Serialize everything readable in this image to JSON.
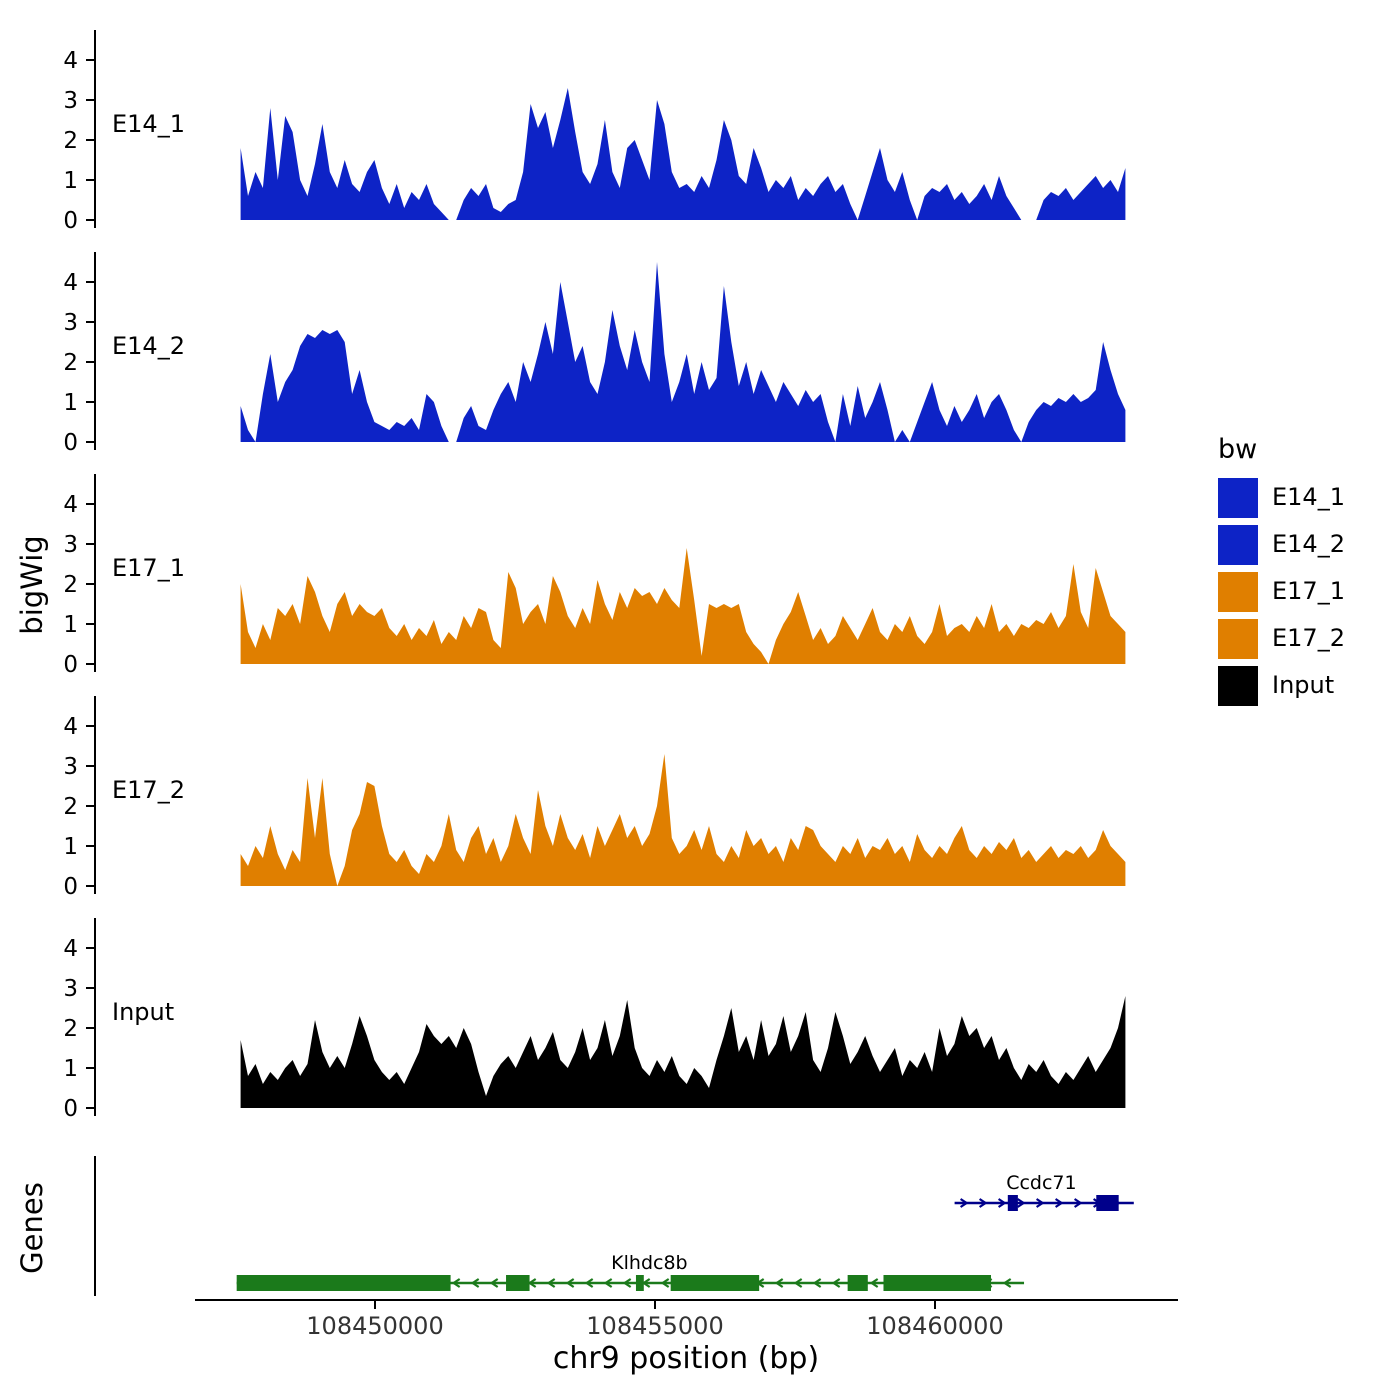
{
  "y_axis_title": "bigWig",
  "genes_panel_title": "Genes",
  "x_axis": {
    "title": "chr9 position (bp)",
    "tick_labels": [
      "108450000",
      "108455000",
      "108460000"
    ],
    "tick_values": [
      108450000,
      108455000,
      108460000
    ]
  },
  "legend": {
    "title": "bw",
    "items": [
      {
        "label": "E14_1",
        "color": "#0d23c6"
      },
      {
        "label": "E14_2",
        "color": "#0d23c6"
      },
      {
        "label": "E17_1",
        "color": "#e07f00"
      },
      {
        "label": "E17_2",
        "color": "#e07f00"
      },
      {
        "label": "Input",
        "color": "#000000"
      }
    ]
  },
  "chart_data": {
    "type": "area",
    "title": "",
    "xlabel": "chr9 position (bp)",
    "ylabel": "bigWig",
    "x_start": 108447600,
    "x_end": 108463400,
    "y_ticks": [
      0,
      1,
      2,
      3,
      4
    ],
    "ylim": [
      0,
      4.6
    ],
    "x_tick_values": [
      108450000,
      108455000,
      108460000
    ],
    "tracks": [
      {
        "name": "E14_1",
        "color": "#0d23c6",
        "values": [
          1.8,
          0.6,
          1.2,
          0.8,
          2.8,
          1.0,
          2.6,
          2.2,
          1.0,
          0.6,
          1.4,
          2.4,
          1.2,
          0.8,
          1.5,
          0.9,
          0.7,
          1.2,
          1.5,
          0.8,
          0.4,
          0.9,
          0.3,
          0.7,
          0.5,
          0.9,
          0.4,
          0.2,
          0,
          0,
          0.5,
          0.8,
          0.6,
          0.9,
          0.3,
          0.2,
          0.4,
          0.5,
          1.2,
          2.9,
          2.3,
          2.7,
          1.8,
          2.5,
          3.3,
          2.2,
          1.2,
          0.9,
          1.4,
          2.5,
          1.2,
          0.8,
          1.8,
          2.0,
          1.5,
          1.0,
          3.0,
          2.4,
          1.2,
          0.8,
          0.9,
          0.7,
          1.1,
          0.8,
          1.5,
          2.5,
          2.0,
          1.1,
          0.9,
          1.8,
          1.3,
          0.7,
          1.0,
          0.8,
          1.1,
          0.5,
          0.8,
          0.6,
          0.9,
          1.1,
          0.7,
          0.9,
          0.4,
          0,
          0.6,
          1.2,
          1.8,
          1.0,
          0.7,
          1.2,
          0.5,
          0,
          0.6,
          0.8,
          0.7,
          0.9,
          0.5,
          0.7,
          0.4,
          0.6,
          0.9,
          0.5,
          1.1,
          0.6,
          0.3,
          0,
          0,
          0,
          0.5,
          0.7,
          0.6,
          0.8,
          0.5,
          0.7,
          0.9,
          1.1,
          0.8,
          1.0,
          0.7,
          1.3
        ]
      },
      {
        "name": "E14_2",
        "color": "#0d23c6",
        "values": [
          0.9,
          0.3,
          0,
          1.2,
          2.2,
          1.0,
          1.5,
          1.8,
          2.4,
          2.7,
          2.6,
          2.8,
          2.7,
          2.8,
          2.5,
          1.2,
          1.8,
          1.0,
          0.5,
          0.4,
          0.3,
          0.5,
          0.4,
          0.6,
          0.3,
          1.2,
          1.0,
          0.4,
          0,
          0,
          0.6,
          0.9,
          0.4,
          0.3,
          0.8,
          1.2,
          1.5,
          1.0,
          2.0,
          1.5,
          2.2,
          3.0,
          2.2,
          4.0,
          3.0,
          2.0,
          2.4,
          1.5,
          1.2,
          2.0,
          3.3,
          2.4,
          1.8,
          2.8,
          2.0,
          1.5,
          4.5,
          2.2,
          1.0,
          1.5,
          2.2,
          1.2,
          2.0,
          1.3,
          1.6,
          3.9,
          2.5,
          1.4,
          2.0,
          1.2,
          1.8,
          1.4,
          1.0,
          1.5,
          1.2,
          0.9,
          1.3,
          1.0,
          1.2,
          0.5,
          0,
          1.2,
          0.4,
          1.4,
          0.6,
          1.0,
          1.5,
          0.8,
          0,
          0.3,
          0,
          0.5,
          1.0,
          1.5,
          0.8,
          0.4,
          0.9,
          0.5,
          0.8,
          1.2,
          0.6,
          1.0,
          1.2,
          0.8,
          0.3,
          0,
          0.5,
          0.8,
          1.0,
          0.9,
          1.1,
          1.0,
          1.2,
          1.0,
          1.1,
          1.3,
          2.5,
          1.8,
          1.2,
          0.8
        ]
      },
      {
        "name": "E17_1",
        "color": "#e07f00",
        "values": [
          2.0,
          0.8,
          0.4,
          1.0,
          0.6,
          1.4,
          1.2,
          1.5,
          1.0,
          2.2,
          1.8,
          1.2,
          0.8,
          1.5,
          1.8,
          1.2,
          1.5,
          1.3,
          1.2,
          1.4,
          0.9,
          0.7,
          1.0,
          0.6,
          0.9,
          0.7,
          1.1,
          0.5,
          0.8,
          0.6,
          1.2,
          0.9,
          1.4,
          1.3,
          0.6,
          0.4,
          2.3,
          1.9,
          1.0,
          1.3,
          1.5,
          1.0,
          2.2,
          1.8,
          1.2,
          0.9,
          1.4,
          1.0,
          2.1,
          1.5,
          1.1,
          1.8,
          1.4,
          1.9,
          1.7,
          1.8,
          1.5,
          1.9,
          1.6,
          1.4,
          2.9,
          1.6,
          0.2,
          1.5,
          1.4,
          1.5,
          1.4,
          1.5,
          0.8,
          0.5,
          0.3,
          0,
          0.6,
          1.0,
          1.3,
          1.8,
          1.2,
          0.6,
          0.9,
          0.5,
          0.7,
          1.2,
          0.9,
          0.6,
          1.0,
          1.4,
          0.8,
          0.6,
          1.0,
          0.8,
          1.2,
          0.7,
          0.5,
          0.8,
          1.5,
          0.7,
          0.9,
          1.0,
          0.8,
          1.2,
          0.9,
          1.5,
          0.8,
          1.0,
          0.7,
          1.0,
          0.9,
          1.1,
          1.0,
          1.3,
          0.9,
          1.2,
          2.5,
          1.3,
          0.9,
          2.4,
          1.8,
          1.2,
          1.0,
          0.8
        ]
      },
      {
        "name": "E17_2",
        "color": "#e07f00",
        "values": [
          0.8,
          0.5,
          1.0,
          0.7,
          1.5,
          0.8,
          0.4,
          0.9,
          0.6,
          2.7,
          1.2,
          2.7,
          0.8,
          0,
          0.5,
          1.4,
          1.8,
          2.6,
          2.5,
          1.5,
          0.8,
          0.6,
          0.9,
          0.5,
          0.3,
          0.8,
          0.6,
          1.0,
          1.8,
          0.9,
          0.6,
          1.2,
          1.5,
          0.8,
          1.2,
          0.6,
          1.0,
          1.8,
          1.2,
          0.8,
          2.4,
          1.5,
          1.0,
          1.8,
          1.2,
          0.9,
          1.3,
          0.7,
          1.5,
          1.0,
          1.4,
          1.8,
          1.2,
          1.5,
          1.0,
          1.3,
          2.0,
          3.3,
          1.2,
          0.8,
          1.0,
          1.4,
          0.9,
          1.5,
          0.8,
          0.6,
          1.0,
          0.7,
          1.4,
          1.0,
          1.2,
          0.8,
          1.0,
          0.6,
          1.2,
          0.9,
          1.5,
          1.4,
          1.0,
          0.8,
          0.6,
          1.0,
          0.8,
          1.2,
          0.7,
          1.0,
          0.9,
          1.2,
          0.8,
          1.0,
          0.6,
          1.3,
          0.9,
          0.7,
          1.0,
          0.8,
          1.2,
          1.5,
          0.9,
          0.7,
          1.0,
          0.8,
          1.1,
          0.9,
          1.2,
          0.7,
          0.9,
          0.6,
          0.8,
          1.0,
          0.7,
          0.9,
          0.8,
          1.0,
          0.7,
          0.9,
          1.4,
          1.0,
          0.8,
          0.6
        ]
      },
      {
        "name": "Input",
        "color": "#000000",
        "values": [
          1.7,
          0.8,
          1.1,
          0.6,
          0.9,
          0.7,
          1.0,
          1.2,
          0.8,
          1.1,
          2.2,
          1.4,
          1.0,
          1.3,
          1.0,
          1.6,
          2.3,
          1.8,
          1.2,
          0.9,
          0.7,
          0.9,
          0.6,
          1.0,
          1.4,
          2.1,
          1.8,
          1.6,
          1.8,
          1.5,
          2.0,
          1.6,
          0.9,
          0.3,
          0.8,
          1.1,
          1.3,
          1.0,
          1.4,
          1.8,
          1.2,
          1.5,
          1.9,
          1.2,
          1.0,
          1.4,
          2.0,
          1.2,
          1.5,
          2.2,
          1.3,
          1.8,
          2.7,
          1.5,
          1.0,
          0.8,
          1.2,
          0.9,
          1.3,
          0.8,
          0.6,
          1.0,
          0.8,
          0.5,
          1.2,
          1.8,
          2.5,
          1.4,
          1.8,
          1.2,
          2.2,
          1.3,
          1.6,
          2.3,
          1.4,
          1.8,
          2.4,
          1.2,
          0.9,
          1.5,
          2.4,
          1.8,
          1.1,
          1.4,
          1.8,
          1.3,
          0.9,
          1.2,
          1.5,
          0.8,
          1.2,
          1.0,
          1.4,
          0.9,
          2.0,
          1.3,
          1.6,
          2.3,
          1.8,
          2.0,
          1.5,
          1.8,
          1.2,
          1.5,
          1.0,
          0.7,
          1.1,
          0.9,
          1.2,
          0.8,
          0.6,
          0.9,
          0.7,
          1.0,
          1.3,
          0.9,
          1.2,
          1.5,
          2.0,
          2.8
        ]
      }
    ],
    "genes": [
      {
        "name": "Ccdc71",
        "color": "#00008B",
        "strand": "+",
        "row": 0,
        "start": 108460350,
        "end": 108463550,
        "exons": [
          [
            108461300,
            108461480
          ],
          [
            108462880,
            108463280
          ]
        ],
        "label_bp": 108461900
      },
      {
        "name": "Klhdc8b",
        "color": "#1b7a1b",
        "strand": "-",
        "row": 1,
        "start": 108447530,
        "end": 108461590,
        "exons": [
          [
            108447530,
            108451350
          ],
          [
            108452340,
            108452760
          ],
          [
            108454660,
            108454800
          ],
          [
            108455280,
            108456860
          ],
          [
            108458440,
            108458800
          ],
          [
            108459080,
            108461000
          ]
        ],
        "label_bp": 108454900
      }
    ]
  }
}
